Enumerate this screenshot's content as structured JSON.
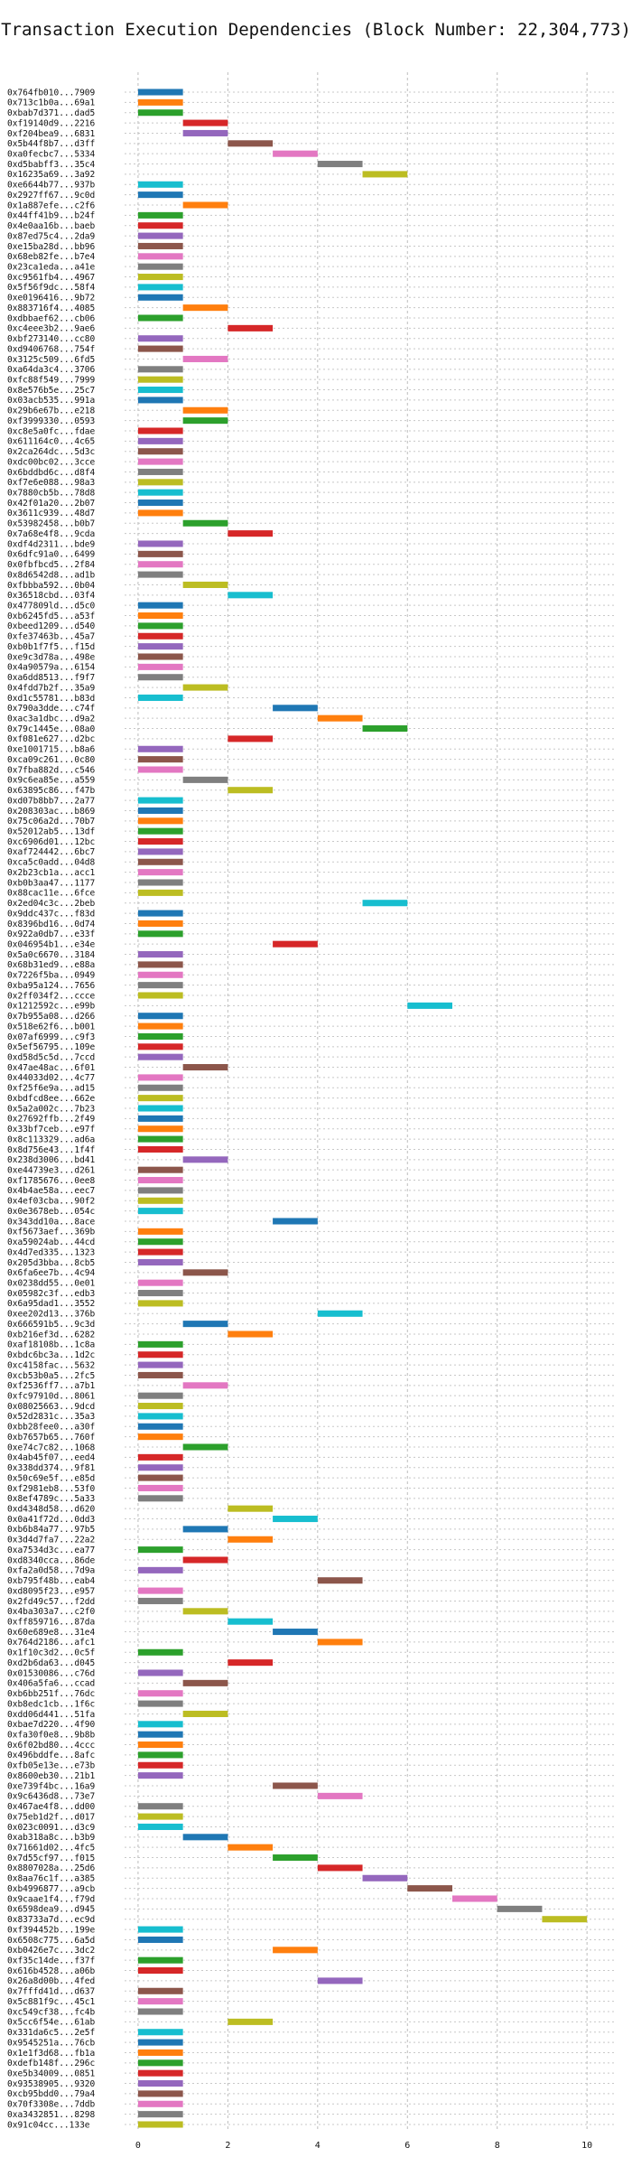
{
  "chart_data": {
    "type": "bar",
    "title": "Transaction Execution Dependencies (Block Number: 22,304,773)",
    "xlabel": "",
    "ylabel": "",
    "xlim": [
      -0.3,
      10.6
    ],
    "xticks": [
      0,
      2,
      4,
      6,
      8,
      10
    ],
    "grid": true,
    "palette": [
      "#1f77b4",
      "#ff7f0e",
      "#2ca02c",
      "#d62728",
      "#9467bd",
      "#8c564b",
      "#e377c2",
      "#7f7f7f",
      "#bcbd22",
      "#17becf"
    ],
    "transactions": [
      {
        "label": "0x764fb010...7909",
        "start": 0
      },
      {
        "label": "0x713c1b0a...69a1",
        "start": 0
      },
      {
        "label": "0xbab7d371...dad5",
        "start": 0
      },
      {
        "label": "0xf19140d9...2216",
        "start": 1
      },
      {
        "label": "0xf204bea9...6831",
        "start": 1
      },
      {
        "label": "0x5b44f8b7...d3ff",
        "start": 2
      },
      {
        "label": "0xa0fecbc7...5334",
        "start": 3
      },
      {
        "label": "0xd5babff3...35c4",
        "start": 4
      },
      {
        "label": "0x16235a69...3a92",
        "start": 5
      },
      {
        "label": "0xe6644b77...937b",
        "start": 0
      },
      {
        "label": "0x2927ff67...9c0d",
        "start": 0
      },
      {
        "label": "0x1a887efe...c2f6",
        "start": 1
      },
      {
        "label": "0x44ff41b9...b24f",
        "start": 0
      },
      {
        "label": "0x4e0aa16b...baeb",
        "start": 0
      },
      {
        "label": "0x87ed75c4...2da9",
        "start": 0
      },
      {
        "label": "0xe15ba28d...bb96",
        "start": 0
      },
      {
        "label": "0x68eb82fe...b7e4",
        "start": 0
      },
      {
        "label": "0x23ca1eda...a41e",
        "start": 0
      },
      {
        "label": "0xc9561fb4...4967",
        "start": 0
      },
      {
        "label": "0x5f56f9dc...58f4",
        "start": 0
      },
      {
        "label": "0xe0196416...9b72",
        "start": 0
      },
      {
        "label": "0x883716f4...4085",
        "start": 1
      },
      {
        "label": "0xdbbaef62...cb06",
        "start": 0
      },
      {
        "label": "0xc4eee3b2...9ae6",
        "start": 2
      },
      {
        "label": "0xbf273140...cc80",
        "start": 0
      },
      {
        "label": "0xd9406768...754f",
        "start": 0
      },
      {
        "label": "0x3125c509...6fd5",
        "start": 1
      },
      {
        "label": "0xa64da3c4...3706",
        "start": 0
      },
      {
        "label": "0xfc88f549...7999",
        "start": 0
      },
      {
        "label": "0x8e576b5e...25c7",
        "start": 0
      },
      {
        "label": "0x03acb535...991a",
        "start": 0
      },
      {
        "label": "0x29b6e67b...e218",
        "start": 1
      },
      {
        "label": "0xf3999330...0593",
        "start": 1
      },
      {
        "label": "0xc8e5a0fc...fdae",
        "start": 0
      },
      {
        "label": "0x611164c0...4c65",
        "start": 0
      },
      {
        "label": "0x2ca264dc...5d3c",
        "start": 0
      },
      {
        "label": "0xdc00bc02...3cce",
        "start": 0
      },
      {
        "label": "0x6bddbd6c...d8f4",
        "start": 0
      },
      {
        "label": "0xf7e6e088...98a3",
        "start": 0
      },
      {
        "label": "0x7880cb5b...78d8",
        "start": 0
      },
      {
        "label": "0x42f01a20...2b07",
        "start": 0
      },
      {
        "label": "0x3611c939...48d7",
        "start": 0
      },
      {
        "label": "0x53982458...b0b7",
        "start": 1
      },
      {
        "label": "0x7a68e4f8...9cda",
        "start": 2
      },
      {
        "label": "0xdf4d2311...bde9",
        "start": 0
      },
      {
        "label": "0x6dfc91a0...6499",
        "start": 0
      },
      {
        "label": "0x0fbfbcd5...2f84",
        "start": 0
      },
      {
        "label": "0x8d6542d8...ad1b",
        "start": 0
      },
      {
        "label": "0xfbbba592...0b04",
        "start": 1
      },
      {
        "label": "0x36518cbd...03f4",
        "start": 2
      },
      {
        "label": "0x477809ld...d5c0",
        "start": 0
      },
      {
        "label": "0xb6245fd5...a53f",
        "start": 0
      },
      {
        "label": "0xbeed1209...d540",
        "start": 0
      },
      {
        "label": "0xfe37463b...45a7",
        "start": 0
      },
      {
        "label": "0xb0b1f7f5...f15d",
        "start": 0
      },
      {
        "label": "0xe9c3d78a...498e",
        "start": 0
      },
      {
        "label": "0x4a90579a...6154",
        "start": 0
      },
      {
        "label": "0xa6dd8513...f9f7",
        "start": 0
      },
      {
        "label": "0x4fdd7b2f...35a9",
        "start": 1
      },
      {
        "label": "0xd1c55781...b83d",
        "start": 0
      },
      {
        "label": "0x790a3dde...c74f",
        "start": 3
      },
      {
        "label": "0xac3a1dbc...d9a2",
        "start": 4
      },
      {
        "label": "0x79c1445e...08a0",
        "start": 5
      },
      {
        "label": "0xf081e627...d2bc",
        "start": 2
      },
      {
        "label": "0xe1001715...b8a6",
        "start": 0
      },
      {
        "label": "0xca09c261...0c80",
        "start": 0
      },
      {
        "label": "0x7fba882d...c546",
        "start": 0
      },
      {
        "label": "0x9c6ea85e...a559",
        "start": 1
      },
      {
        "label": "0x63895c86...f47b",
        "start": 2
      },
      {
        "label": "0xd07b8bb7...2a77",
        "start": 0
      },
      {
        "label": "0x208303ac...b869",
        "start": 0
      },
      {
        "label": "0x75c06a2d...70b7",
        "start": 0
      },
      {
        "label": "0x52012ab5...13df",
        "start": 0
      },
      {
        "label": "0xc6906d01...12bc",
        "start": 0
      },
      {
        "label": "0xaf724442...6bc7",
        "start": 0
      },
      {
        "label": "0xca5c0add...04d8",
        "start": 0
      },
      {
        "label": "0x2b23cb1a...acc1",
        "start": 0
      },
      {
        "label": "0xb0b3aa47...1177",
        "start": 0
      },
      {
        "label": "0x88cac11e...6fce",
        "start": 0
      },
      {
        "label": "0x2ed04c3c...2beb",
        "start": 5
      },
      {
        "label": "0x9ddc437c...f83d",
        "start": 0
      },
      {
        "label": "0x8396bd16...0d74",
        "start": 0
      },
      {
        "label": "0x922a0db7...e33f",
        "start": 0
      },
      {
        "label": "0x046954b1...e34e",
        "start": 3
      },
      {
        "label": "0x5a0c6670...3184",
        "start": 0
      },
      {
        "label": "0x68b31ed9...e88a",
        "start": 0
      },
      {
        "label": "0x7226f5ba...0949",
        "start": 0
      },
      {
        "label": "0xba95a124...7656",
        "start": 0
      },
      {
        "label": "0x2ff034f2...ccce",
        "start": 0
      },
      {
        "label": "0x1212592c...e99b",
        "start": 6
      },
      {
        "label": "0x7b955a08...d266",
        "start": 0
      },
      {
        "label": "0x518e62f6...b001",
        "start": 0
      },
      {
        "label": "0x07af6999...c9f3",
        "start": 0
      },
      {
        "label": "0x5ef56795...109e",
        "start": 0
      },
      {
        "label": "0xd58d5c5d...7ccd",
        "start": 0
      },
      {
        "label": "0x47ae48ac...6f01",
        "start": 1
      },
      {
        "label": "0x44033d02...4c77",
        "start": 0
      },
      {
        "label": "0xf25f6e9a...ad15",
        "start": 0
      },
      {
        "label": "0xbdfcd8ee...662e",
        "start": 0
      },
      {
        "label": "0x5a2a002c...7b23",
        "start": 0
      },
      {
        "label": "0x27692ffb...2f49",
        "start": 0
      },
      {
        "label": "0x33bf7ceb...e97f",
        "start": 0
      },
      {
        "label": "0x8c113329...ad6a",
        "start": 0
      },
      {
        "label": "0x8d756e43...1f4f",
        "start": 0
      },
      {
        "label": "0x238d3006...bd41",
        "start": 1
      },
      {
        "label": "0xe44739e3...d261",
        "start": 0
      },
      {
        "label": "0xf1785676...0ee8",
        "start": 0
      },
      {
        "label": "0x4b4ae58a...eec7",
        "start": 0
      },
      {
        "label": "0x4ef03cba...90f2",
        "start": 0
      },
      {
        "label": "0x0e3678eb...054c",
        "start": 0
      },
      {
        "label": "0x343dd10a...8ace",
        "start": 3
      },
      {
        "label": "0xf5673aef...369b",
        "start": 0
      },
      {
        "label": "0xa59024ab...44cd",
        "start": 0
      },
      {
        "label": "0x4d7ed335...1323",
        "start": 0
      },
      {
        "label": "0x205d3bba...8cb5",
        "start": 0
      },
      {
        "label": "0x6fa6ee7b...4c94",
        "start": 1
      },
      {
        "label": "0x0238dd55...0e01",
        "start": 0
      },
      {
        "label": "0x05982c3f...edb3",
        "start": 0
      },
      {
        "label": "0x6a95dad1...3552",
        "start": 0
      },
      {
        "label": "0xee202d13...376b",
        "start": 4
      },
      {
        "label": "0x666591b5...9c3d",
        "start": 1
      },
      {
        "label": "0xb216ef3d...6282",
        "start": 2
      },
      {
        "label": "0xaf18108b...1c8a",
        "start": 0
      },
      {
        "label": "0xbdc6bc3a...1d2c",
        "start": 0
      },
      {
        "label": "0xc4158fac...5632",
        "start": 0
      },
      {
        "label": "0xcb53b0a5...2fc5",
        "start": 0
      },
      {
        "label": "0xf2536ff7...a7b1",
        "start": 1
      },
      {
        "label": "0xfc97910d...8061",
        "start": 0
      },
      {
        "label": "0x08025663...9dcd",
        "start": 0
      },
      {
        "label": "0x52d2831c...35a3",
        "start": 0
      },
      {
        "label": "0xbb28fee0...a30f",
        "start": 0
      },
      {
        "label": "0xb7657b65...760f",
        "start": 0
      },
      {
        "label": "0xe74c7c82...1068",
        "start": 1
      },
      {
        "label": "0x4ab45f07...eed4",
        "start": 0
      },
      {
        "label": "0x338dd374...9f81",
        "start": 0
      },
      {
        "label": "0x50c69e5f...e85d",
        "start": 0
      },
      {
        "label": "0xf2981eb8...53f0",
        "start": 0
      },
      {
        "label": "0x8ef4789c...5a33",
        "start": 0
      },
      {
        "label": "0xd4348d58...d620",
        "start": 2
      },
      {
        "label": "0x0a41f72d...0dd3",
        "start": 3
      },
      {
        "label": "0xb6b84a77...97b5",
        "start": 1
      },
      {
        "label": "0x3d4d7fa7...22a2",
        "start": 2
      },
      {
        "label": "0xa7534d3c...ea77",
        "start": 0
      },
      {
        "label": "0xd8340cca...86de",
        "start": 1
      },
      {
        "label": "0xfa2a0d58...7d9a",
        "start": 0
      },
      {
        "label": "0xb795f48b...eab4",
        "start": 4
      },
      {
        "label": "0xd8095f23...e957",
        "start": 0
      },
      {
        "label": "0x2fd49c57...f2dd",
        "start": 0
      },
      {
        "label": "0x4ba303a7...c2f0",
        "start": 1
      },
      {
        "label": "0xff859716...87da",
        "start": 2
      },
      {
        "label": "0x60e689e8...31e4",
        "start": 3
      },
      {
        "label": "0x764d2186...afc1",
        "start": 4
      },
      {
        "label": "0x1f10c3d2...0c5f",
        "start": 0
      },
      {
        "label": "0xd2b6da63...d045",
        "start": 2
      },
      {
        "label": "0x01530086...c76d",
        "start": 0
      },
      {
        "label": "0x406a5fa6...ccad",
        "start": 1
      },
      {
        "label": "0xb6bb251f...76dc",
        "start": 0
      },
      {
        "label": "0xb8edc1cb...1f6c",
        "start": 0
      },
      {
        "label": "0xdd06d441...51fa",
        "start": 1
      },
      {
        "label": "0xbae7d220...4f90",
        "start": 0
      },
      {
        "label": "0xfa30f0e8...9b8b",
        "start": 0
      },
      {
        "label": "0x6f02bd80...4ccc",
        "start": 0
      },
      {
        "label": "0x496bddfe...8afc",
        "start": 0
      },
      {
        "label": "0xfb05e13e...e73b",
        "start": 0
      },
      {
        "label": "0x8600eb30...21b1",
        "start": 0
      },
      {
        "label": "0xe739f4bc...16a9",
        "start": 3
      },
      {
        "label": "0x9c6436d8...73e7",
        "start": 4
      },
      {
        "label": "0x467ae4f8...dd00",
        "start": 0
      },
      {
        "label": "0x75eb1d2f...d017",
        "start": 0
      },
      {
        "label": "0x023c0091...d3c9",
        "start": 0
      },
      {
        "label": "0xab318a8c...b3b9",
        "start": 1
      },
      {
        "label": "0x71661d02...4fc5",
        "start": 2
      },
      {
        "label": "0x7d55cf97...f015",
        "start": 3
      },
      {
        "label": "0x8807028a...25d6",
        "start": 4
      },
      {
        "label": "0x8aa76c1f...a385",
        "start": 5
      },
      {
        "label": "0xb4996877...a9cb",
        "start": 6
      },
      {
        "label": "0x9caae1f4...f79d",
        "start": 7
      },
      {
        "label": "0x6598dea9...d945",
        "start": 8
      },
      {
        "label": "0x83733a7d...ec9d",
        "start": 9
      },
      {
        "label": "0xf394452b...199e",
        "start": 0
      },
      {
        "label": "0x6508c775...6a5d",
        "start": 0
      },
      {
        "label": "0xb0426e7c...3dc2",
        "start": 3
      },
      {
        "label": "0xf35c14de...f37f",
        "start": 0
      },
      {
        "label": "0x616b4528...a06b",
        "start": 0
      },
      {
        "label": "0x26a8d00b...4fed",
        "start": 4
      },
      {
        "label": "0x7fffd41d...d637",
        "start": 0
      },
      {
        "label": "0x5c881f9c...45c1",
        "start": 0
      },
      {
        "label": "0xc549cf38...fc4b",
        "start": 0
      },
      {
        "label": "0x5cc6f54e...61ab",
        "start": 2
      },
      {
        "label": "0x331da6c5...2e5f",
        "start": 0
      },
      {
        "label": "0x9545251a...76cb",
        "start": 0
      },
      {
        "label": "0x1e1f3d68...fb1a",
        "start": 0
      },
      {
        "label": "0xdefb148f...296c",
        "start": 0
      },
      {
        "label": "0xe5b34009...0851",
        "start": 0
      },
      {
        "label": "0x93538905...9320",
        "start": 0
      },
      {
        "label": "0xcb95bdd0...79a4",
        "start": 0
      },
      {
        "label": "0x70f3308e...7ddb",
        "start": 0
      },
      {
        "label": "0xa3432851...8298",
        "start": 0
      },
      {
        "label": "0x91c04cc...133e",
        "start": 0
      }
    ]
  }
}
